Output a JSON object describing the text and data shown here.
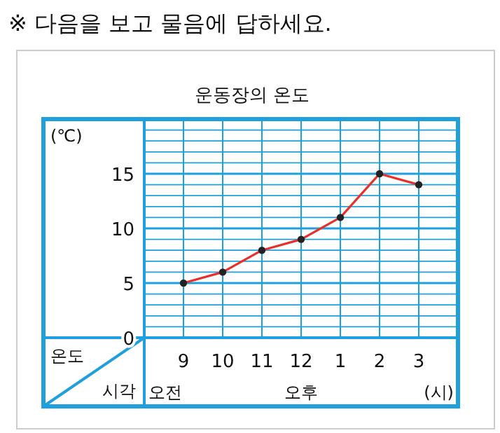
{
  "chart_data": {
    "type": "line",
    "title": "운동장의 온도",
    "xlabel": "시각",
    "ylabel": "온도",
    "annotations": [
      "※ 다음을 보고 물음에 답하세요.",
      "(℃)",
      "오전",
      "오후",
      "(시)"
    ],
    "categories": [
      "9",
      "10",
      "11",
      "12",
      "1",
      "2",
      "3"
    ],
    "series": [
      {
        "color": "#e8302a",
        "values": [
          5,
          6,
          8,
          9,
          11,
          15,
          14
        ]
      }
    ],
    "ylim": [
      0,
      20
    ],
    "yticks": [
      0,
      {
        "value": 1,
        "label": null
      },
      {
        "value": 2,
        "label": null
      },
      {
        "value": 3,
        "label": null
      },
      {
        "value": 4,
        "label": null
      },
      5,
      {
        "value": 6,
        "label": null
      },
      {
        "value": 7,
        "label": null
      },
      {
        "value": 8,
        "label": null
      },
      {
        "value": 9,
        "label": null
      },
      10,
      {
        "value": 11,
        "label": null
      },
      {
        "value": 12,
        "label": null
      },
      {
        "value": 13,
        "label": null
      },
      {
        "value": 14,
        "label": null
      },
      15,
      {
        "value": 16,
        "label": null
      },
      {
        "value": 17,
        "label": null
      },
      {
        "value": 18,
        "label": null
      },
      {
        "value": 19,
        "label": null
      },
      {
        "value": 20,
        "label": null
      }
    ],
    "grid": true,
    "marker": "circle",
    "line_style": "solid"
  }
}
